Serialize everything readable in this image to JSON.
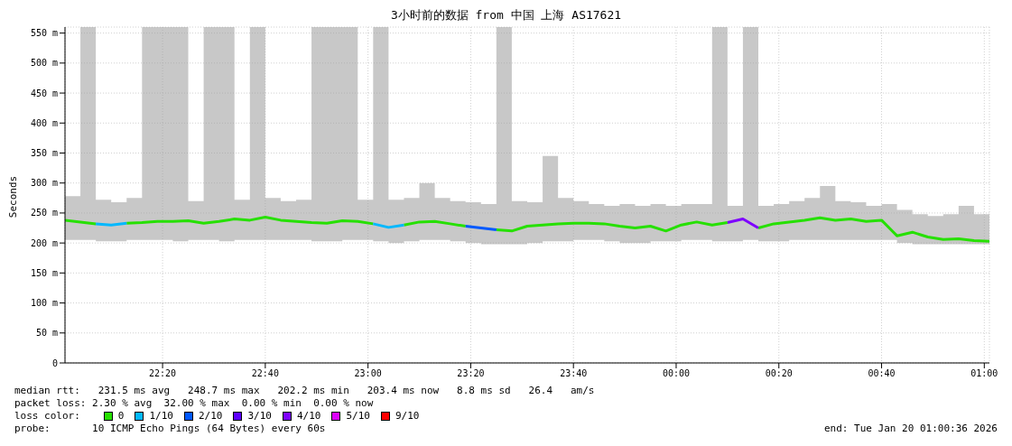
{
  "chart_data": {
    "type": "line",
    "title": "3小时前的数据 from 中国 上海 AS17621",
    "ylabel": "Seconds",
    "legend_title": "loss color:",
    "legend": "bottom",
    "grid": true,
    "xlim": [
      "2026-01-19T22:01",
      "2026-01-20T01:01"
    ],
    "xticks": [
      {
        "value": "2026-01-19T22:20",
        "label": "22:20"
      },
      {
        "value": "2026-01-19T22:40",
        "label": "22:40"
      },
      {
        "value": "2026-01-19T23:00",
        "label": "23:00"
      },
      {
        "value": "2026-01-19T23:20",
        "label": "23:20"
      },
      {
        "value": "2026-01-19T23:40",
        "label": "23:40"
      },
      {
        "value": "2026-01-20T00:00",
        "label": "00:00"
      },
      {
        "value": "2026-01-20T00:20",
        "label": "00:20"
      },
      {
        "value": "2026-01-20T00:40",
        "label": "00:40"
      },
      {
        "value": "2026-01-20T01:00",
        "label": "01:00"
      }
    ],
    "ylim": [
      0,
      560
    ],
    "yticks": [
      0,
      {
        "value": 50,
        "label": "50 m"
      },
      {
        "value": 100,
        "label": "100 m"
      },
      {
        "value": 150,
        "label": "150 m"
      },
      {
        "value": 200,
        "label": "200 m"
      },
      {
        "value": 250,
        "label": "250 m"
      },
      {
        "value": 300,
        "label": "300 m"
      },
      {
        "value": 350,
        "label": "350 m"
      },
      {
        "value": 400,
        "label": "400 m"
      },
      {
        "value": 450,
        "label": "450 m"
      },
      {
        "value": 500,
        "label": "500 m"
      },
      {
        "value": 550,
        "label": "550 m"
      }
    ],
    "x": [
      "2026-01-19T22:01",
      "2026-01-19T22:04",
      "2026-01-19T22:07",
      "2026-01-19T22:10",
      "2026-01-19T22:13",
      "2026-01-19T22:16",
      "2026-01-19T22:19",
      "2026-01-19T22:22",
      "2026-01-19T22:25",
      "2026-01-19T22:28",
      "2026-01-19T22:31",
      "2026-01-19T22:34",
      "2026-01-19T22:37",
      "2026-01-19T22:40",
      "2026-01-19T22:43",
      "2026-01-19T22:46",
      "2026-01-19T22:49",
      "2026-01-19T22:52",
      "2026-01-19T22:55",
      "2026-01-19T22:58",
      "2026-01-19T23:01",
      "2026-01-19T23:04",
      "2026-01-19T23:07",
      "2026-01-19T23:10",
      "2026-01-19T23:13",
      "2026-01-19T23:16",
      "2026-01-19T23:19",
      "2026-01-19T23:22",
      "2026-01-19T23:25",
      "2026-01-19T23:28",
      "2026-01-19T23:31",
      "2026-01-19T23:34",
      "2026-01-19T23:37",
      "2026-01-19T23:40",
      "2026-01-19T23:43",
      "2026-01-19T23:46",
      "2026-01-19T23:49",
      "2026-01-19T23:52",
      "2026-01-19T23:55",
      "2026-01-19T23:58",
      "2026-01-20T00:01",
      "2026-01-20T00:04",
      "2026-01-20T00:07",
      "2026-01-20T00:10",
      "2026-01-20T00:13",
      "2026-01-20T00:16",
      "2026-01-20T00:19",
      "2026-01-20T00:22",
      "2026-01-20T00:25",
      "2026-01-20T00:28",
      "2026-01-20T00:31",
      "2026-01-20T00:34",
      "2026-01-20T00:37",
      "2026-01-20T00:40",
      "2026-01-20T00:43",
      "2026-01-20T00:46",
      "2026-01-20T00:49",
      "2026-01-20T00:52",
      "2026-01-20T00:55",
      "2026-01-20T00:58",
      "2026-01-20T01:01"
    ],
    "series": [
      {
        "name": "0",
        "color": "#26e000",
        "values": [
          238,
          235,
          232,
          null,
          233,
          234,
          236,
          236,
          237,
          233,
          236,
          240,
          238,
          243,
          238,
          236,
          234,
          233,
          237,
          236,
          232,
          null,
          230,
          235,
          236,
          232,
          228,
          null,
          222,
          220,
          228,
          230,
          232,
          233,
          233,
          232,
          228,
          225,
          228,
          220,
          230,
          235,
          230,
          234,
          null,
          225,
          232,
          235,
          238,
          242,
          238,
          240,
          236,
          238,
          212,
          218,
          210,
          206,
          207,
          204,
          203
        ],
        "lower": [
          205,
          205,
          203,
          203,
          205,
          205,
          205,
          203,
          205,
          205,
          203,
          205,
          205,
          205,
          205,
          205,
          203,
          203,
          205,
          205,
          203,
          200,
          203,
          205,
          205,
          203,
          200,
          198,
          198,
          198,
          200,
          203,
          203,
          205,
          205,
          203,
          200,
          200,
          203,
          203,
          205,
          205,
          203,
          203,
          205,
          203,
          203,
          205,
          205,
          205,
          205,
          205,
          205,
          205,
          200,
          198,
          198,
          198,
          198,
          198,
          198
        ],
        "upper": [
          278,
          560,
          272,
          268,
          275,
          560,
          560,
          560,
          270,
          560,
          560,
          272,
          560,
          275,
          270,
          272,
          560,
          560,
          560,
          272,
          560,
          272,
          275,
          300,
          275,
          270,
          268,
          265,
          560,
          270,
          268,
          345,
          275,
          270,
          265,
          262,
          265,
          262,
          265,
          262,
          265,
          265,
          560,
          262,
          560,
          262,
          265,
          270,
          275,
          295,
          270,
          268,
          262,
          265,
          255,
          248,
          245,
          248,
          262,
          248,
          242
        ]
      },
      {
        "name": "1/10",
        "color": "#00b8ff",
        "values": [
          null,
          null,
          232,
          230,
          233,
          null,
          null,
          null,
          null,
          null,
          null,
          null,
          null,
          null,
          null,
          null,
          null,
          null,
          null,
          null,
          232,
          226,
          230,
          null,
          null,
          null,
          null,
          null,
          null,
          null,
          null,
          null,
          null,
          null,
          null,
          null,
          null,
          null,
          null,
          null,
          null,
          null,
          null,
          null,
          null,
          null,
          null,
          null,
          null,
          null,
          null,
          null,
          null,
          null,
          null,
          null,
          null,
          null,
          null,
          null,
          null
        ]
      },
      {
        "name": "2/10",
        "color": "#0059ff",
        "values": [
          null,
          null,
          null,
          null,
          null,
          null,
          null,
          null,
          null,
          null,
          null,
          null,
          null,
          null,
          null,
          null,
          null,
          null,
          null,
          null,
          null,
          null,
          null,
          null,
          null,
          null,
          228,
          225,
          222,
          null,
          null,
          null,
          null,
          null,
          null,
          null,
          null,
          null,
          null,
          null,
          null,
          null,
          null,
          null,
          null,
          null,
          null,
          null,
          null,
          null,
          null,
          null,
          null,
          null,
          null,
          null,
          null,
          null,
          null,
          null,
          null
        ]
      },
      {
        "name": "3/10",
        "color": "#5e00ff",
        "values": [
          null,
          null,
          null,
          null,
          null,
          null,
          null,
          null,
          null,
          null,
          null,
          null,
          null,
          null,
          null,
          null,
          null,
          null,
          null,
          null,
          null,
          null,
          null,
          null,
          null,
          null,
          null,
          null,
          null,
          null,
          null,
          null,
          null,
          null,
          null,
          null,
          null,
          null,
          null,
          null,
          null,
          null,
          null,
          null,
          null,
          null,
          null,
          null,
          null,
          null,
          null,
          null,
          null,
          null,
          null,
          null,
          null,
          null,
          null,
          null,
          null
        ]
      },
      {
        "name": "4/10",
        "color": "#7e00ff",
        "values": [
          null,
          null,
          null,
          null,
          null,
          null,
          null,
          null,
          null,
          null,
          null,
          null,
          null,
          null,
          null,
          null,
          null,
          null,
          null,
          null,
          null,
          null,
          null,
          null,
          null,
          null,
          null,
          null,
          null,
          null,
          null,
          null,
          null,
          null,
          null,
          null,
          null,
          null,
          null,
          null,
          null,
          null,
          null,
          234,
          240,
          225,
          null,
          null,
          null,
          null,
          null,
          null,
          null,
          null,
          null,
          null,
          null,
          null,
          null,
          null,
          null
        ]
      },
      {
        "name": "5/10",
        "color": "#dd00ff",
        "values": [
          null,
          null,
          null,
          null,
          null,
          null,
          null,
          null,
          null,
          null,
          null,
          null,
          null,
          null,
          null,
          null,
          null,
          null,
          null,
          null,
          null,
          null,
          null,
          null,
          null,
          null,
          null,
          null,
          null,
          null,
          null,
          null,
          null,
          null,
          null,
          null,
          null,
          null,
          null,
          null,
          null,
          null,
          null,
          null,
          null,
          null,
          null,
          null,
          null,
          null,
          null,
          null,
          null,
          null,
          null,
          null,
          null,
          null,
          null,
          null,
          null
        ]
      },
      {
        "name": "9/10",
        "color": "#ff0000",
        "values": [
          null,
          null,
          null,
          null,
          null,
          null,
          null,
          null,
          null,
          null,
          null,
          null,
          null,
          null,
          null,
          null,
          null,
          null,
          null,
          null,
          null,
          null,
          null,
          null,
          null,
          null,
          null,
          null,
          null,
          null,
          null,
          null,
          null,
          null,
          null,
          null,
          null,
          null,
          null,
          null,
          null,
          null,
          null,
          null,
          null,
          null,
          null,
          null,
          null,
          null,
          null,
          null,
          null,
          null,
          null,
          null,
          null,
          null,
          null,
          null,
          null
        ]
      }
    ],
    "annotations": [
      "median rtt:   231.5 ms avg   248.7 ms max   202.2 ms min   203.4 ms now   8.8 ms sd   26.4   am/s",
      "packet loss: 2.30 % avg  32.00 % max  0.00 % min  0.00 % now",
      "probe:       10 ICMP Echo Pings (64 Bytes) every 60s",
      "end: Tue Jan 20 01:00:36 2026"
    ]
  }
}
